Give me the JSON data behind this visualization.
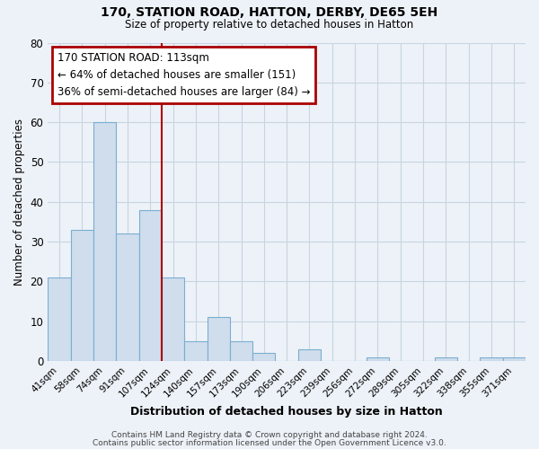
{
  "title": "170, STATION ROAD, HATTON, DERBY, DE65 5EH",
  "subtitle": "Size of property relative to detached houses in Hatton",
  "xlabel": "Distribution of detached houses by size in Hatton",
  "ylabel": "Number of detached properties",
  "bar_labels": [
    "41sqm",
    "58sqm",
    "74sqm",
    "91sqm",
    "107sqm",
    "124sqm",
    "140sqm",
    "157sqm",
    "173sqm",
    "190sqm",
    "206sqm",
    "223sqm",
    "239sqm",
    "256sqm",
    "272sqm",
    "289sqm",
    "305sqm",
    "322sqm",
    "338sqm",
    "355sqm",
    "371sqm"
  ],
  "bar_values": [
    21,
    33,
    60,
    32,
    38,
    21,
    5,
    11,
    5,
    2,
    0,
    3,
    0,
    0,
    1,
    0,
    0,
    1,
    0,
    1,
    1
  ],
  "bar_color": "#cfdded",
  "bar_edge_color": "#7aaed0",
  "ylim": [
    0,
    80
  ],
  "yticks": [
    0,
    10,
    20,
    30,
    40,
    50,
    60,
    70,
    80
  ],
  "property_line_bin": 4.5,
  "annotation_title": "170 STATION ROAD: 113sqm",
  "annotation_line1": "← 64% of detached houses are smaller (151)",
  "annotation_line2": "36% of semi-detached houses are larger (84) →",
  "annotation_box_color": "#ffffff",
  "annotation_box_edge": "#aa0000",
  "property_line_color": "#aa0000",
  "footer1": "Contains HM Land Registry data © Crown copyright and database right 2024.",
  "footer2": "Contains public sector information licensed under the Open Government Licence v3.0.",
  "background_color": "#edf2f8",
  "plot_background": "#edf2f8",
  "grid_color": "#c8d4e0"
}
